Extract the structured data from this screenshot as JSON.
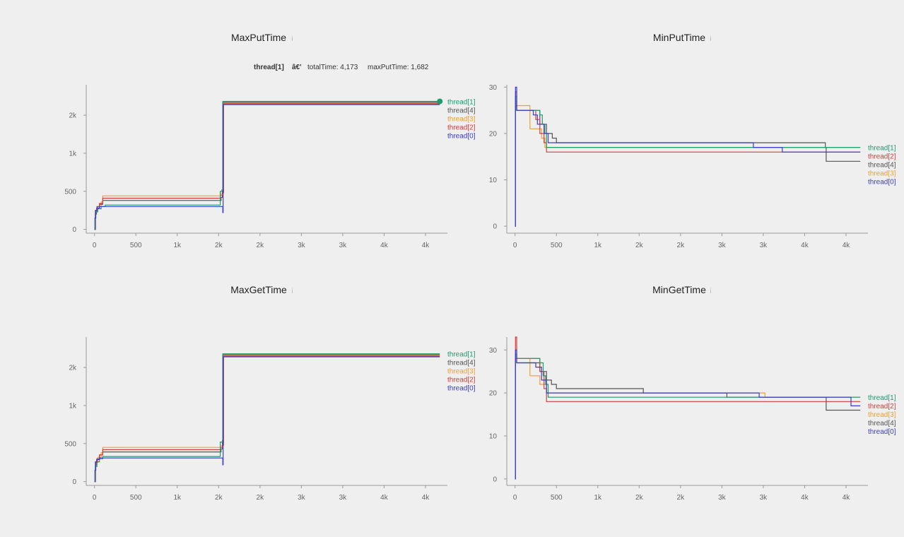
{
  "colors": {
    "thread[0]": "#3b3bd0",
    "thread[1]": "#1a9e6e",
    "thread[2]": "#d93c3c",
    "thread[3]": "#f0a030",
    "thread[4]": "#555555"
  },
  "info_icon": "ⅰ",
  "tooltip": {
    "series": "thread[1]",
    "separator": "â€'",
    "total_label": "totalTime: 4,173",
    "max_label": "maxPutTime: 1,682"
  },
  "chart_data": [
    {
      "type": "line",
      "title": "MaxPutTime",
      "xlim": [
        -100,
        4265
      ],
      "ylim": [
        -50,
        1900
      ],
      "yticks": [
        0,
        500,
        1000,
        1500
      ],
      "ytick_labels": [
        "0",
        "500",
        "1k",
        "2k"
      ],
      "xticks": [
        0,
        500,
        1000,
        1500,
        2000,
        2500,
        3000,
        3500,
        4000
      ],
      "xtick_labels": [
        "0",
        "500",
        "1k",
        "2k",
        "2k",
        "3k",
        "3k",
        "4k",
        "4k"
      ],
      "legend": [
        "thread[1]",
        "thread[4]",
        "thread[3]",
        "thread[2]",
        "thread[0]"
      ],
      "highlight": {
        "series": "thread[1]",
        "x": 4173,
        "y": 1682
      },
      "series": [
        {
          "name": "thread[1]",
          "x": [
            0,
            10,
            20,
            40,
            80,
            130,
            1500,
            1520,
            1540,
            1550,
            4173
          ],
          "y": [
            0,
            200,
            230,
            270,
            300,
            320,
            320,
            500,
            520,
            1682,
            1682
          ]
        },
        {
          "name": "thread[4]",
          "x": [
            0,
            10,
            30,
            60,
            100,
            1500,
            1530,
            1545,
            1550,
            4173
          ],
          "y": [
            0,
            250,
            300,
            330,
            380,
            380,
            420,
            500,
            1670,
            1670
          ]
        },
        {
          "name": "thread[3]",
          "x": [
            0,
            15,
            40,
            80,
            100,
            1500,
            1520,
            1545,
            1560,
            4173
          ],
          "y": [
            0,
            240,
            300,
            360,
            440,
            440,
            470,
            490,
            1660,
            1660
          ]
        },
        {
          "name": "thread[2]",
          "x": [
            0,
            10,
            25,
            60,
            100,
            1500,
            1520,
            1545,
            1560,
            4173
          ],
          "y": [
            0,
            200,
            280,
            340,
            410,
            410,
            450,
            480,
            1650,
            1650
          ]
        },
        {
          "name": "thread[0]",
          "x": [
            0,
            5,
            15,
            30,
            60,
            1545,
            1550,
            1555,
            4173
          ],
          "y": [
            0,
            150,
            250,
            280,
            300,
            300,
            220,
            1640,
            1640
          ]
        }
      ]
    },
    {
      "type": "line",
      "title": "MinPutTime",
      "xlim": [
        -100,
        4265
      ],
      "ylim": [
        -1.5,
        30.5
      ],
      "yticks": [
        0,
        10,
        20,
        30
      ],
      "ytick_labels": [
        "0",
        "10",
        "20",
        "30"
      ],
      "xticks": [
        0,
        500,
        1000,
        1500,
        2000,
        2500,
        3000,
        3500,
        4000
      ],
      "xtick_labels": [
        "0",
        "500",
        "1k",
        "2k",
        "2k",
        "3k",
        "3k",
        "4k",
        "4k"
      ],
      "legend": [
        "thread[1]",
        "thread[2]",
        "thread[4]",
        "thread[3]",
        "thread[0]"
      ],
      "series": [
        {
          "name": "thread[1]",
          "x": [
            0,
            5,
            20,
            300,
            330,
            360,
            380,
            4173
          ],
          "y": [
            0,
            28,
            25,
            24,
            22,
            20,
            17,
            17
          ]
        },
        {
          "name": "thread[2]",
          "x": [
            0,
            5,
            20,
            250,
            300,
            350,
            380,
            4173
          ],
          "y": [
            0,
            29,
            25,
            23,
            20,
            18,
            16,
            16
          ]
        },
        {
          "name": "thread[4]",
          "x": [
            0,
            5,
            20,
            300,
            380,
            450,
            500,
            3750,
            3760,
            4173
          ],
          "y": [
            0,
            26,
            25,
            22,
            20,
            19,
            18,
            17,
            14,
            14
          ]
        },
        {
          "name": "thread[3]",
          "x": [
            0,
            5,
            20,
            180,
            250,
            320,
            360,
            4173
          ],
          "y": [
            0,
            27,
            26,
            21,
            21,
            19,
            17,
            17
          ]
        },
        {
          "name": "thread[0]",
          "x": [
            0,
            5,
            20,
            220,
            270,
            350,
            400,
            2880,
            3230,
            4173
          ],
          "y": [
            0,
            30,
            25,
            24,
            22,
            20,
            18,
            17,
            16,
            16
          ]
        }
      ]
    },
    {
      "type": "line",
      "title": "MaxGetTime",
      "xlim": [
        -100,
        4265
      ],
      "ylim": [
        -50,
        1900
      ],
      "yticks": [
        0,
        500,
        1000,
        1500
      ],
      "ytick_labels": [
        "0",
        "500",
        "1k",
        "2k"
      ],
      "xticks": [
        0,
        500,
        1000,
        1500,
        2000,
        2500,
        3000,
        3500,
        4000
      ],
      "xtick_labels": [
        "0",
        "500",
        "1k",
        "2k",
        "2k",
        "3k",
        "3k",
        "4k",
        "4k"
      ],
      "legend": [
        "thread[1]",
        "thread[4]",
        "thread[3]",
        "thread[2]",
        "thread[0]"
      ],
      "series": [
        {
          "name": "thread[1]",
          "x": [
            0,
            10,
            30,
            60,
            100,
            1500,
            1520,
            1545,
            1550,
            4173
          ],
          "y": [
            0,
            200,
            260,
            300,
            330,
            330,
            520,
            540,
            1680,
            1680
          ]
        },
        {
          "name": "thread[4]",
          "x": [
            0,
            10,
            30,
            60,
            100,
            1500,
            1530,
            1545,
            1550,
            4173
          ],
          "y": [
            0,
            260,
            300,
            350,
            390,
            390,
            430,
            520,
            1670,
            1670
          ]
        },
        {
          "name": "thread[3]",
          "x": [
            0,
            15,
            40,
            80,
            100,
            1500,
            1520,
            1545,
            1560,
            4173
          ],
          "y": [
            0,
            250,
            320,
            380,
            450,
            450,
            470,
            500,
            1660,
            1660
          ]
        },
        {
          "name": "thread[2]",
          "x": [
            0,
            10,
            25,
            60,
            100,
            1500,
            1520,
            1545,
            1560,
            4173
          ],
          "y": [
            0,
            220,
            290,
            350,
            420,
            420,
            450,
            480,
            1650,
            1650
          ]
        },
        {
          "name": "thread[0]",
          "x": [
            0,
            5,
            15,
            30,
            60,
            1545,
            1550,
            1555,
            4173
          ],
          "y": [
            0,
            150,
            260,
            290,
            310,
            310,
            220,
            1640,
            1640
          ]
        }
      ]
    },
    {
      "type": "line",
      "title": "MinGetTime",
      "xlim": [
        -100,
        4265
      ],
      "ylim": [
        -1.5,
        33
      ],
      "yticks": [
        0,
        10,
        20,
        30
      ],
      "ytick_labels": [
        "0",
        "10",
        "20",
        "30"
      ],
      "xticks": [
        0,
        500,
        1000,
        1500,
        2000,
        2500,
        3000,
        3500,
        4000
      ],
      "xtick_labels": [
        "0",
        "500",
        "1k",
        "2k",
        "2k",
        "3k",
        "3k",
        "4k",
        "4k"
      ],
      "legend": [
        "thread[1]",
        "thread[2]",
        "thread[3]",
        "thread[4]",
        "thread[0]"
      ],
      "series": [
        {
          "name": "thread[1]",
          "x": [
            0,
            5,
            20,
            300,
            340,
            370,
            400,
            4173
          ],
          "y": [
            0,
            29,
            28,
            27,
            24,
            22,
            19,
            19
          ]
        },
        {
          "name": "thread[2]",
          "x": [
            0,
            5,
            20,
            300,
            350,
            380,
            4173
          ],
          "y": [
            0,
            33,
            28,
            25,
            21,
            18,
            18
          ]
        },
        {
          "name": "thread[3]",
          "x": [
            0,
            5,
            20,
            180,
            250,
            300,
            380,
            3000,
            3020,
            4173
          ],
          "y": [
            0,
            29,
            28,
            24,
            24,
            22,
            20,
            20,
            19,
            19
          ]
        },
        {
          "name": "thread[4]",
          "x": [
            0,
            5,
            20,
            300,
            380,
            440,
            500,
            1550,
            2560,
            3750,
            3760,
            4173
          ],
          "y": [
            0,
            28,
            27,
            25,
            23,
            22,
            21,
            20,
            19,
            19,
            16,
            16
          ]
        },
        {
          "name": "thread[0]",
          "x": [
            0,
            5,
            20,
            250,
            320,
            380,
            2920,
            2950,
            4060,
            4173
          ],
          "y": [
            0,
            30,
            27,
            26,
            23,
            20,
            20,
            19,
            17,
            17
          ]
        }
      ]
    }
  ]
}
